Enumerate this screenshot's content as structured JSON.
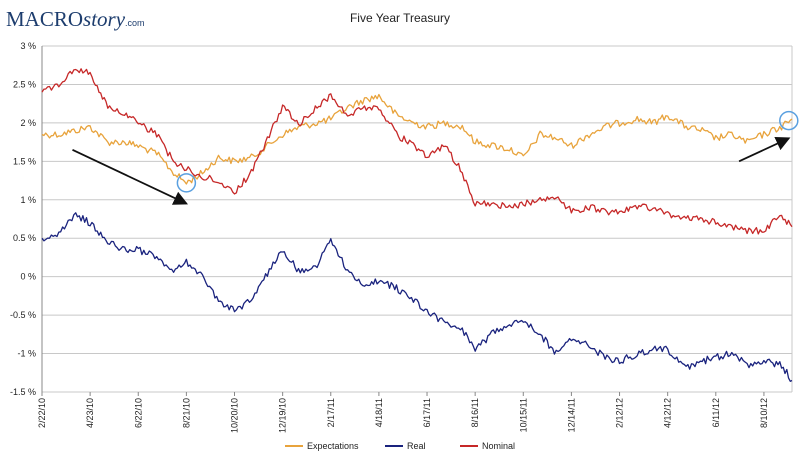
{
  "logo": {
    "part1": "MACRO",
    "part2": "story",
    "part3": ".com"
  },
  "chart_data": {
    "type": "line",
    "title": "Five Year Treasury",
    "yticks": [
      "3 %",
      "2.5 %",
      "2 %",
      "1.5 %",
      "1 %",
      "0.5 %",
      "0 %",
      "-0.5 %",
      "-1 %",
      "-1.5 %"
    ],
    "ytick_values": [
      3,
      2.5,
      2,
      1.5,
      1,
      0.5,
      0,
      -0.5,
      -1,
      -1.5
    ],
    "ylim": [
      -1.5,
      3
    ],
    "xlim": [
      "2/22/10",
      "9/14/12"
    ],
    "xticks": [
      "2/22/10",
      "4/23/10",
      "6/22/10",
      "8/21/10",
      "10/20/10",
      "12/19/10",
      "2/17/11",
      "4/18/11",
      "6/17/11",
      "8/16/11",
      "10/15/11",
      "12/14/11",
      "2/12/12",
      "4/12/12",
      "6/11/12",
      "8/10/12"
    ],
    "grid": "horizontal",
    "legend_position": "bottom",
    "series": [
      {
        "name": "Expectations",
        "color": "#e8a33c",
        "x": [
          "2/22/10",
          "3/15/10",
          "4/5/10",
          "4/23/10",
          "5/15/10",
          "6/5/10",
          "6/22/10",
          "7/15/10",
          "8/5/10",
          "8/21/10",
          "9/10/10",
          "9/30/10",
          "10/20/10",
          "11/10/10",
          "11/30/10",
          "12/19/10",
          "1/10/11",
          "1/31/11",
          "2/17/11",
          "3/10/11",
          "3/31/11",
          "4/18/11",
          "5/10/11",
          "5/31/11",
          "6/17/11",
          "7/10/11",
          "7/31/11",
          "8/16/11",
          "9/10/11",
          "9/30/11",
          "10/15/11",
          "11/5/11",
          "11/25/11",
          "12/14/11",
          "1/5/12",
          "1/25/12",
          "2/12/12",
          "3/5/12",
          "3/25/12",
          "4/12/12",
          "5/5/12",
          "5/25/12",
          "6/11/12",
          "7/1/12",
          "7/20/12",
          "8/10/12",
          "9/1/12",
          "9/14/12"
        ],
        "y": [
          1.85,
          1.85,
          1.9,
          1.95,
          1.75,
          1.75,
          1.7,
          1.6,
          1.35,
          1.22,
          1.35,
          1.55,
          1.5,
          1.55,
          1.7,
          1.85,
          1.95,
          2.0,
          2.05,
          2.2,
          2.3,
          2.35,
          2.1,
          2.0,
          1.95,
          2.0,
          1.95,
          1.75,
          1.7,
          1.65,
          1.55,
          1.85,
          1.8,
          1.7,
          1.85,
          1.95,
          2.0,
          2.05,
          2.0,
          2.1,
          1.95,
          1.9,
          1.8,
          1.85,
          1.75,
          1.85,
          1.95,
          2.05
        ]
      },
      {
        "name": "Real",
        "color": "#1a237e",
        "x": [
          "2/22/10",
          "3/15/10",
          "4/5/10",
          "4/23/10",
          "5/15/10",
          "6/5/10",
          "6/22/10",
          "7/15/10",
          "8/5/10",
          "8/21/10",
          "9/10/10",
          "9/30/10",
          "10/20/10",
          "11/10/10",
          "11/30/10",
          "12/19/10",
          "1/10/11",
          "1/31/11",
          "2/17/11",
          "3/10/11",
          "3/31/11",
          "4/18/11",
          "5/10/11",
          "5/31/11",
          "6/17/11",
          "7/10/11",
          "7/31/11",
          "8/16/11",
          "9/10/11",
          "9/30/11",
          "10/15/11",
          "11/5/11",
          "11/25/11",
          "12/14/11",
          "1/5/12",
          "1/25/12",
          "2/12/12",
          "3/5/12",
          "3/25/12",
          "4/12/12",
          "5/5/12",
          "5/25/12",
          "6/11/12",
          "7/1/12",
          "7/20/12",
          "8/10/12",
          "9/1/12",
          "9/14/12"
        ],
        "y": [
          0.5,
          0.55,
          0.8,
          0.7,
          0.45,
          0.35,
          0.35,
          0.25,
          0.05,
          0.2,
          0.0,
          -0.3,
          -0.45,
          -0.3,
          0.05,
          0.35,
          0.05,
          0.15,
          0.5,
          0.05,
          -0.1,
          -0.05,
          -0.15,
          -0.3,
          -0.45,
          -0.6,
          -0.7,
          -0.95,
          -0.7,
          -0.6,
          -0.55,
          -0.75,
          -1.0,
          -0.8,
          -0.9,
          -1.05,
          -1.1,
          -1.0,
          -0.95,
          -0.95,
          -1.2,
          -1.1,
          -1.05,
          -1.0,
          -1.15,
          -1.1,
          -1.15,
          -1.35
        ]
      },
      {
        "name": "Nominal",
        "color": "#c62828",
        "x": [
          "2/22/10",
          "3/15/10",
          "4/5/10",
          "4/23/10",
          "5/15/10",
          "6/5/10",
          "6/22/10",
          "7/15/10",
          "8/5/10",
          "8/21/10",
          "9/10/10",
          "9/30/10",
          "10/20/10",
          "11/10/10",
          "11/30/10",
          "12/19/10",
          "1/10/11",
          "1/31/11",
          "2/17/11",
          "3/10/11",
          "3/31/11",
          "4/18/11",
          "5/10/11",
          "5/31/11",
          "6/17/11",
          "7/10/11",
          "7/31/11",
          "8/16/11",
          "9/10/11",
          "9/30/11",
          "10/15/11",
          "11/5/11",
          "11/25/11",
          "12/14/11",
          "1/5/12",
          "1/25/12",
          "2/12/12",
          "3/5/12",
          "3/25/12",
          "4/12/12",
          "5/5/12",
          "5/25/12",
          "6/11/12",
          "7/1/12",
          "7/20/12",
          "8/10/12",
          "9/1/12",
          "9/14/12"
        ],
        "y": [
          2.4,
          2.5,
          2.7,
          2.65,
          2.2,
          2.1,
          2.0,
          1.85,
          1.5,
          1.4,
          1.3,
          1.25,
          1.1,
          1.35,
          1.8,
          2.2,
          2.0,
          2.2,
          2.35,
          2.1,
          2.2,
          2.2,
          1.85,
          1.7,
          1.55,
          1.7,
          1.35,
          0.95,
          0.95,
          0.9,
          0.95,
          1.0,
          1.05,
          0.85,
          0.9,
          0.85,
          0.85,
          0.9,
          0.9,
          0.8,
          0.75,
          0.75,
          0.7,
          0.65,
          0.6,
          0.6,
          0.8,
          0.65
        ]
      }
    ],
    "annotations": [
      {
        "type": "arrow",
        "from": [
          "4/1/10",
          1.65
        ],
        "to": [
          "8/21/10",
          0.95
        ]
      },
      {
        "type": "circle",
        "at": [
          "8/21/10",
          1.22
        ]
      },
      {
        "type": "arrow",
        "from": [
          "7/10/12",
          1.5
        ],
        "to": [
          "9/10/12",
          1.8
        ]
      },
      {
        "type": "circle",
        "at": [
          "9/10/12",
          2.03
        ]
      }
    ]
  }
}
